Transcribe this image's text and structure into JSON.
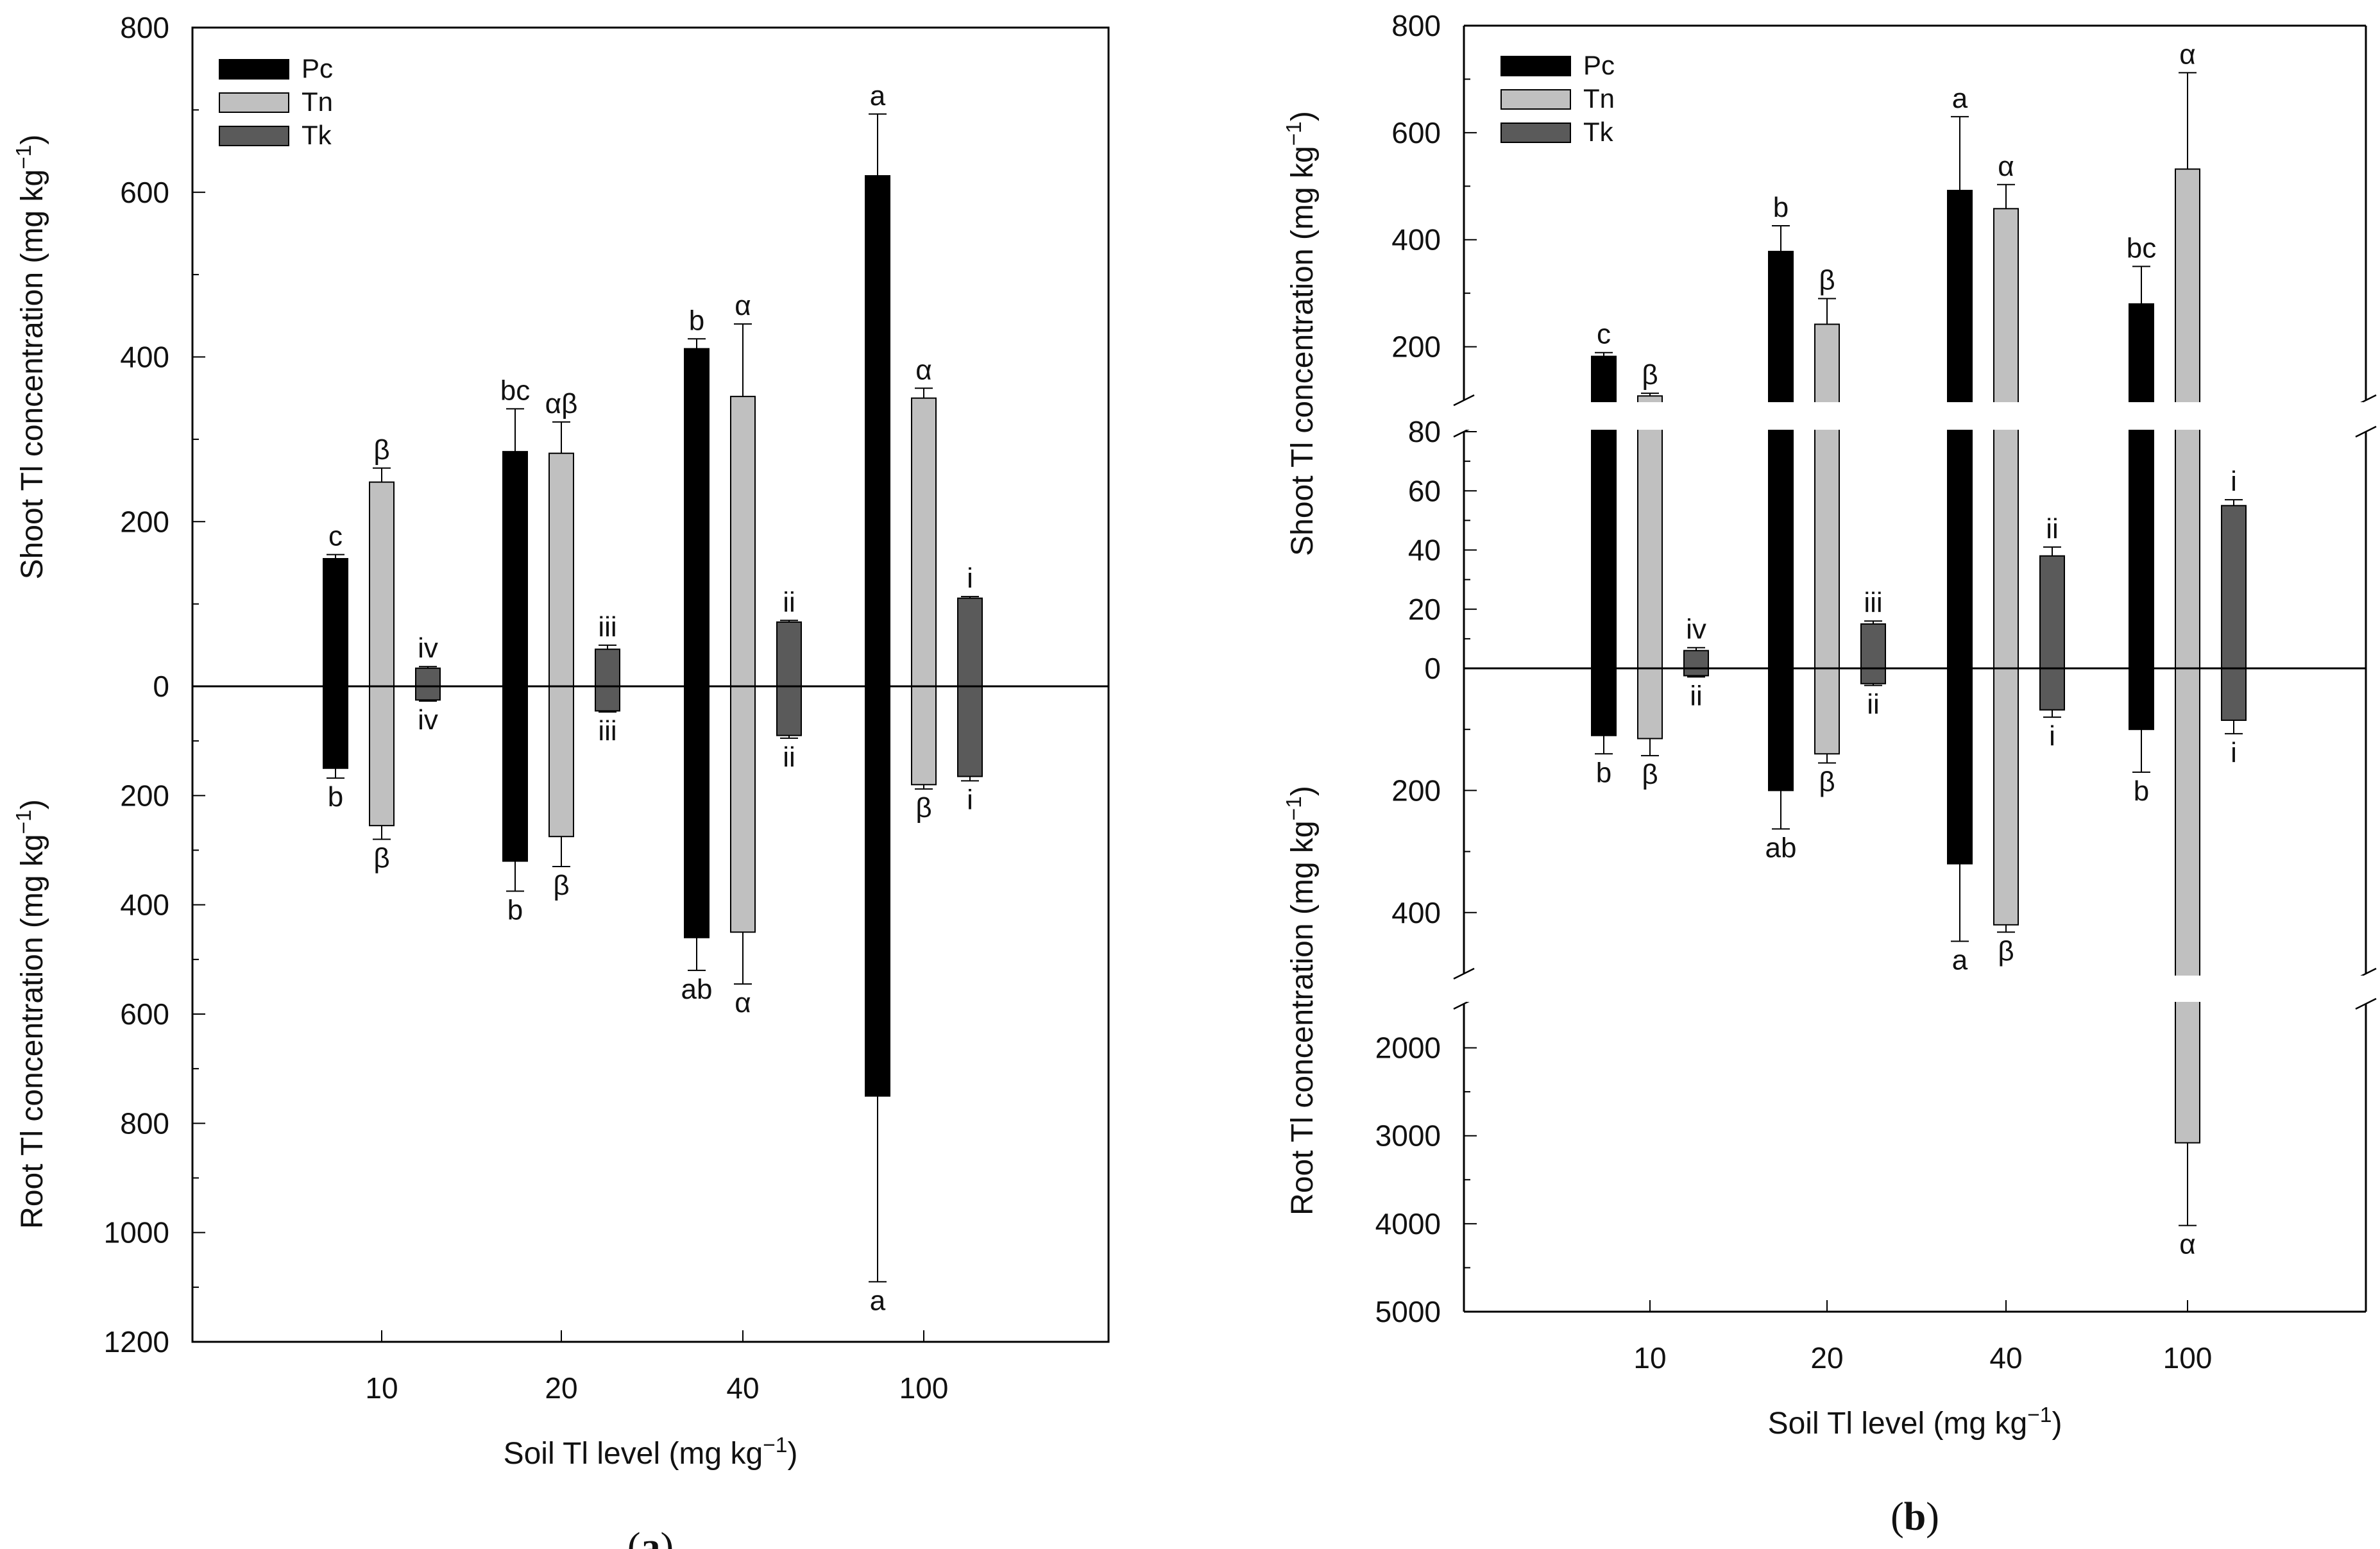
{
  "series_colors": {
    "Pc": "#000000",
    "Tn": "#c0c0c0",
    "Tk": "#5a5a5a"
  },
  "chart_data": [
    {
      "type": "bar",
      "panel": "(a)",
      "panel_letter": "a",
      "xlabel_main": "Soil Tl level  (mg kg",
      "xlabel_sup": "−1",
      "xlabel_end": ")",
      "ylabel_top": "Shoot Tl  concentration (mg kg",
      "ylabel_bottom": "Root Tl  concentration (mg kg",
      "ylabel_sup": "−1",
      "ylabel_end": ")",
      "categories": [
        "10",
        "20",
        "40",
        "100"
      ],
      "legend": [
        "Pc",
        "Tn",
        "Tk"
      ],
      "ylim_shoot": [
        0,
        800
      ],
      "ylim_root": [
        0,
        1200
      ],
      "shoot_ticks": [
        0,
        200,
        400,
        600,
        800
      ],
      "root_ticks": [
        200,
        400,
        600,
        800,
        1000,
        1200
      ],
      "series": [
        {
          "name": "Pc",
          "shoot": [
            155,
            285,
            410,
            620
          ],
          "shoot_err": [
            5,
            52,
            12,
            75
          ],
          "shoot_letters": [
            "c",
            "bc",
            "b",
            "a"
          ],
          "root": [
            150,
            320,
            460,
            750
          ],
          "root_err": [
            18,
            55,
            60,
            340
          ],
          "root_letters": [
            "b",
            "b",
            "ab",
            "a"
          ]
        },
        {
          "name": "Tn",
          "shoot": [
            248,
            283,
            352,
            350
          ],
          "shoot_err": [
            17,
            38,
            88,
            12
          ],
          "shoot_letters": [
            "β",
            "αβ",
            "α",
            "α"
          ],
          "root": [
            255,
            275,
            450,
            180
          ],
          "root_err": [
            25,
            55,
            95,
            8
          ],
          "root_letters": [
            "β",
            "β",
            "α",
            "β"
          ]
        },
        {
          "name": "Tk",
          "shoot": [
            22,
            45,
            78,
            107
          ],
          "shoot_err": [
            2,
            5,
            2,
            2
          ],
          "shoot_letters": [
            "iv",
            "iii",
            "ii",
            "i"
          ],
          "root": [
            25,
            45,
            90,
            165
          ],
          "root_err": [
            2,
            2,
            5,
            8
          ],
          "root_letters": [
            "iv",
            "iii",
            "ii",
            "i"
          ]
        }
      ]
    },
    {
      "type": "bar",
      "panel": "(b)",
      "panel_letter": "b",
      "xlabel_main": "Soil Tl level  (mg kg",
      "xlabel_sup": "−1",
      "xlabel_end": ")",
      "ylabel_top": "Shoot Tl  concentration (mg kg",
      "ylabel_bottom": "Root Tl  concentration (mg kg",
      "ylabel_sup": "−1",
      "ylabel_end": ")",
      "categories": [
        "10",
        "20",
        "40",
        "100"
      ],
      "legend": [
        "Pc",
        "Tn",
        "Tk"
      ],
      "shoot_upper_ticks": [
        200,
        400,
        600,
        800
      ],
      "shoot_lower_ticks": [
        0,
        20,
        40,
        60,
        80
      ],
      "root_upper_ticks": [
        200,
        400
      ],
      "root_lower_ticks": [
        2000,
        3000,
        4000,
        5000
      ],
      "series": [
        {
          "name": "Pc",
          "shoot": [
            182,
            378,
            492,
            280
          ],
          "shoot_err": [
            7,
            48,
            138,
            70
          ],
          "shoot_letters": [
            "c",
            "b",
            "a",
            "bc"
          ],
          "root": [
            110,
            200,
            320,
            100
          ],
          "root_err": [
            30,
            63,
            127,
            70
          ],
          "root_letters": [
            "b",
            "ab",
            "a",
            "b"
          ]
        },
        {
          "name": "Tn",
          "shoot": [
            108,
            242,
            458,
            532
          ],
          "shoot_err": [
            5,
            48,
            45,
            180
          ],
          "shoot_letters": [
            "β",
            "β",
            "α",
            "α"
          ],
          "root": [
            115,
            140,
            420,
            3080
          ],
          "root_err": [
            28,
            15,
            12,
            940
          ],
          "root_letters": [
            "β",
            "β",
            "β",
            "α"
          ]
        },
        {
          "name": "Tk",
          "shoot": [
            6,
            15,
            38,
            55
          ],
          "shoot_err": [
            1,
            1,
            3,
            2
          ],
          "shoot_letters": [
            "iv",
            "iii",
            "ii",
            "i"
          ],
          "root": [
            12,
            25,
            68,
            85
          ],
          "root_err": [
            2,
            3,
            12,
            22
          ],
          "root_letters": [
            "ii",
            "ii",
            "i",
            "i"
          ]
        }
      ]
    }
  ]
}
